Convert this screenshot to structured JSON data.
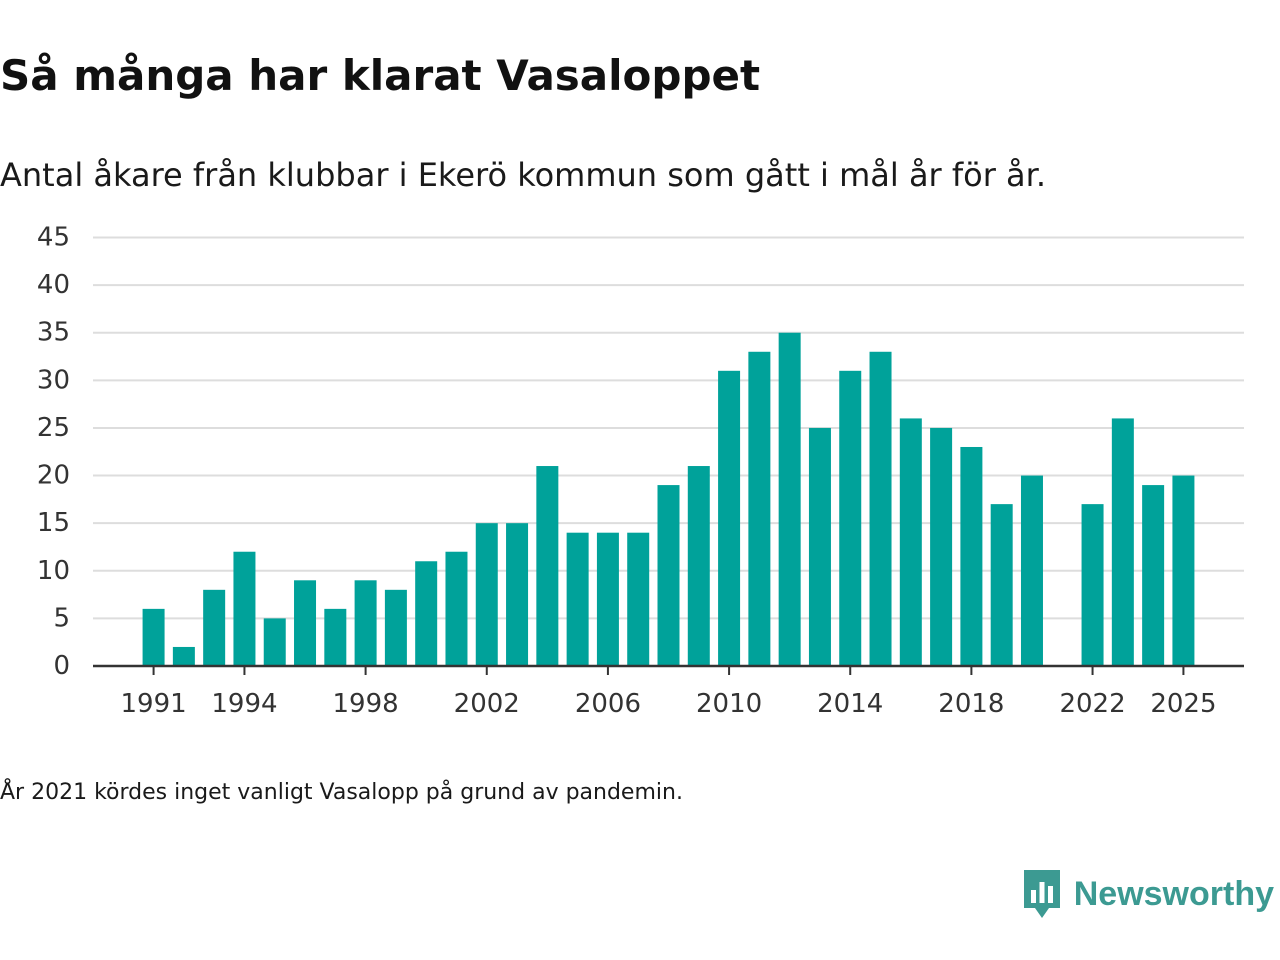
{
  "header": {
    "title": "Så många har klarat Vasaloppet",
    "subtitle": "Antal åkare från klubbar i Ekerö kommun som gått i mål år för år."
  },
  "footer": {
    "note": "År 2021 kördes inget vanligt Vasalopp på grund av pandemin.",
    "brand": "Newsworthy"
  },
  "colors": {
    "bar": "#00a29a",
    "grid": "#dddddd",
    "axis": "#333333",
    "brand": "#3c9a92"
  },
  "chart_data": {
    "type": "bar",
    "title": "Så många har klarat Vasaloppet",
    "subtitle": "Antal åkare från klubbar i Ekerö kommun som gått i mål år för år.",
    "xlabel": "",
    "ylabel": "",
    "ylim": [
      0,
      45
    ],
    "y_ticks": [
      0,
      5,
      10,
      15,
      20,
      25,
      30,
      35,
      40,
      45
    ],
    "x_tick_labels": [
      1991,
      1994,
      1998,
      2002,
      2006,
      2010,
      2014,
      2018,
      2022,
      2025
    ],
    "x_range": [
      1989,
      2027
    ],
    "grid": true,
    "legend": "none",
    "categories": [
      1991,
      1992,
      1993,
      1994,
      1995,
      1996,
      1997,
      1998,
      1999,
      2000,
      2001,
      2002,
      2003,
      2004,
      2005,
      2006,
      2007,
      2008,
      2009,
      2010,
      2011,
      2012,
      2013,
      2014,
      2015,
      2016,
      2017,
      2018,
      2019,
      2020,
      2021,
      2022,
      2023,
      2024,
      2025
    ],
    "values": [
      6,
      2,
      8,
      12,
      5,
      9,
      6,
      9,
      8,
      11,
      12,
      15,
      15,
      21,
      14,
      14,
      14,
      19,
      21,
      31,
      33,
      35,
      25,
      31,
      33,
      26,
      25,
      23,
      17,
      20,
      null,
      17,
      26,
      19,
      20
    ],
    "annotations": [
      "År 2021 kördes inget vanligt Vasalopp på grund av pandemin."
    ]
  }
}
